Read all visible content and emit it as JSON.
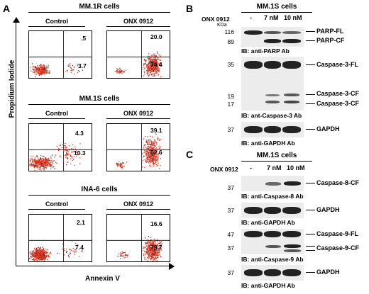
{
  "panels": {
    "A": {
      "letter": "A",
      "y_axis_label": "Propidium Iodide",
      "x_axis_label": "Annexin V",
      "rows": [
        {
          "cell_line": "MM.1R cells",
          "control_label": "Control",
          "treat_label": "ONX 0912",
          "control_q2": ".5",
          "control_q4": "3.7",
          "treat_q2": "20.0",
          "treat_q4": "74.4"
        },
        {
          "cell_line": "MM.1S cells",
          "control_label": "Control",
          "treat_label": "ONX 0912",
          "control_q2": "4.3",
          "control_q4": "10.3",
          "treat_q2": "39.1",
          "treat_q4": "52.6"
        },
        {
          "cell_line": "INA-6 cells",
          "control_label": "Control",
          "treat_label": "ONX 0912",
          "control_q2": "2.1",
          "control_q4": "7.4",
          "treat_q2": "16.6",
          "treat_q4": "79.7"
        }
      ],
      "colors": {
        "dots": "#e8341c"
      }
    },
    "B": {
      "letter": "B",
      "title": "MM.1S cells",
      "treatment_label": "ONX 0912",
      "lanes": [
        "-",
        "7 nM",
        "10 nM"
      ],
      "kda": "KDa",
      "blots": [
        {
          "markers": [
            "116",
            "89"
          ],
          "bands": [
            "PARP-FL",
            "PARP-CF"
          ],
          "ib": "IB: anti-PARP Ab"
        },
        {
          "markers": [
            "35",
            "19",
            "17"
          ],
          "bands": [
            "Caspase-3-FL",
            "Caspase-3-CF",
            "Caspase-3-CF"
          ],
          "ib": "IB: ant-Caspase-3 Ab"
        },
        {
          "markers": [
            "37"
          ],
          "bands": [
            "GAPDH"
          ],
          "ib": "IB: anti-GAPDH Ab"
        }
      ]
    },
    "C": {
      "letter": "C",
      "title": "MM.1S cells",
      "treatment_label": "ONX 0912",
      "lanes": [
        "-",
        "7 nM",
        "10 nM"
      ],
      "blots": [
        {
          "markers": [
            "37"
          ],
          "bands": [
            "Caspase-8-CF"
          ],
          "ib": "IB: anti-Caspase-8 Ab"
        },
        {
          "markers": [
            "37"
          ],
          "bands": [
            "GAPDH"
          ],
          "ib": "IB: anti-GAPDH Ab"
        },
        {
          "markers": [
            "47",
            "37"
          ],
          "bands": [
            "Caspase-9-FL",
            "Caspase-9-CF"
          ],
          "ib": "IB: anti-Caspase-9 Ab"
        },
        {
          "markers": [
            "37"
          ],
          "bands": [
            "GAPDH"
          ],
          "ib": "IB: anti-GAPDH Ab"
        }
      ]
    }
  }
}
